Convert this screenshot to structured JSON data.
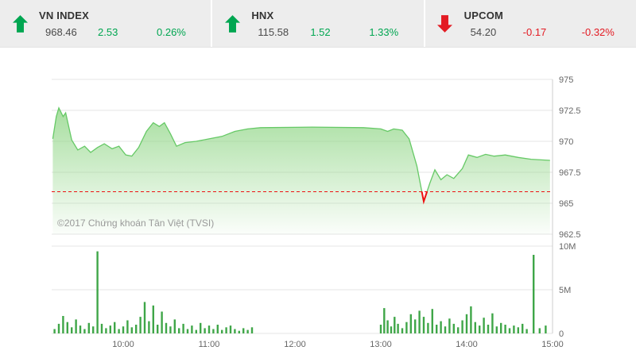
{
  "tickers": [
    {
      "name": "VN INDEX",
      "value": "968.46",
      "change": "2.53",
      "percent": "0.26%",
      "direction": "up"
    },
    {
      "name": "HNX",
      "value": "115.58",
      "change": "1.52",
      "percent": "1.33%",
      "direction": "up"
    },
    {
      "name": "UPCOM",
      "value": "54.20",
      "change": "-0.17",
      "percent": "-0.32%",
      "direction": "down"
    }
  ],
  "chart": {
    "copyright": "©2017 Chứng khoán Tân Việt (TVSI)"
  },
  "colors": {
    "up": "#00a651",
    "down": "#e31b23",
    "line": "#66c966",
    "area_fill": "#8ed584",
    "volume": "#3fa648",
    "ref_line": "#ee1111",
    "grid": "#e6e6e6",
    "border": "#cccccc"
  },
  "chart_data": {
    "type": "area",
    "title": "VN INDEX intraday price and volume",
    "x_axis": {
      "min": 9.1667,
      "max": 15,
      "ticks": [
        10,
        11,
        12,
        13,
        14,
        15
      ],
      "tick_labels": [
        "10:00",
        "11:00",
        "12:00",
        "13:00",
        "14:00",
        "15:00"
      ]
    },
    "price_axis": {
      "min": 962.5,
      "max": 975,
      "ticks": [
        975,
        972.5,
        970,
        967.5,
        965,
        962.5
      ],
      "tick_labels": [
        "975",
        "972.5",
        "970",
        "967.5",
        "965",
        "962.5"
      ]
    },
    "volume_axis": {
      "min": 0,
      "max": 10,
      "ticks": [
        10,
        5,
        0
      ],
      "tick_labels": [
        "10M",
        "5M",
        "0"
      ]
    },
    "reference_line": 965.93,
    "price_series": [
      [
        9.18,
        970.2
      ],
      [
        9.22,
        972.0
      ],
      [
        9.25,
        972.7
      ],
      [
        9.3,
        972.0
      ],
      [
        9.33,
        972.3
      ],
      [
        9.4,
        970.1
      ],
      [
        9.47,
        969.3
      ],
      [
        9.55,
        969.6
      ],
      [
        9.62,
        969.1
      ],
      [
        9.7,
        969.5
      ],
      [
        9.78,
        969.8
      ],
      [
        9.87,
        969.4
      ],
      [
        9.95,
        969.6
      ],
      [
        10.03,
        968.9
      ],
      [
        10.1,
        968.8
      ],
      [
        10.18,
        969.5
      ],
      [
        10.27,
        970.8
      ],
      [
        10.35,
        971.5
      ],
      [
        10.42,
        971.2
      ],
      [
        10.48,
        971.5
      ],
      [
        10.55,
        970.6
      ],
      [
        10.62,
        969.6
      ],
      [
        10.72,
        969.9
      ],
      [
        10.85,
        970.0
      ],
      [
        11.0,
        970.2
      ],
      [
        11.15,
        970.4
      ],
      [
        11.3,
        970.8
      ],
      [
        11.45,
        971.0
      ],
      [
        11.6,
        971.1
      ],
      [
        12.2,
        971.15
      ],
      [
        12.8,
        971.1
      ],
      [
        13.0,
        971.0
      ],
      [
        13.08,
        970.8
      ],
      [
        13.15,
        971.0
      ],
      [
        13.25,
        970.9
      ],
      [
        13.33,
        970.2
      ],
      [
        13.42,
        968.0
      ],
      [
        13.5,
        965.15
      ],
      [
        13.57,
        966.6
      ],
      [
        13.63,
        967.7
      ],
      [
        13.7,
        966.9
      ],
      [
        13.77,
        967.3
      ],
      [
        13.85,
        967.0
      ],
      [
        13.95,
        967.8
      ],
      [
        14.02,
        968.9
      ],
      [
        14.12,
        968.7
      ],
      [
        14.22,
        968.95
      ],
      [
        14.32,
        968.8
      ],
      [
        14.45,
        968.9
      ],
      [
        14.6,
        968.7
      ],
      [
        14.75,
        968.55
      ],
      [
        14.97,
        968.46
      ]
    ],
    "volume_series": [
      [
        9.2,
        0.5
      ],
      [
        9.25,
        1.1
      ],
      [
        9.3,
        2.0
      ],
      [
        9.35,
        1.3
      ],
      [
        9.4,
        0.7
      ],
      [
        9.45,
        1.6
      ],
      [
        9.5,
        0.9
      ],
      [
        9.55,
        0.5
      ],
      [
        9.6,
        1.2
      ],
      [
        9.65,
        0.8
      ],
      [
        9.7,
        9.4
      ],
      [
        9.75,
        1.1
      ],
      [
        9.8,
        0.6
      ],
      [
        9.85,
        0.9
      ],
      [
        9.9,
        1.3
      ],
      [
        9.95,
        0.5
      ],
      [
        10.0,
        0.8
      ],
      [
        10.05,
        1.5
      ],
      [
        10.1,
        0.7
      ],
      [
        10.15,
        1.0
      ],
      [
        10.2,
        1.9
      ],
      [
        10.25,
        3.6
      ],
      [
        10.3,
        1.4
      ],
      [
        10.35,
        3.2
      ],
      [
        10.4,
        1.0
      ],
      [
        10.45,
        2.5
      ],
      [
        10.5,
        1.2
      ],
      [
        10.55,
        0.8
      ],
      [
        10.6,
        1.6
      ],
      [
        10.65,
        0.6
      ],
      [
        10.7,
        1.1
      ],
      [
        10.75,
        0.5
      ],
      [
        10.8,
        0.9
      ],
      [
        10.85,
        0.4
      ],
      [
        10.9,
        1.2
      ],
      [
        10.95,
        0.6
      ],
      [
        11.0,
        0.9
      ],
      [
        11.05,
        0.5
      ],
      [
        11.1,
        1.0
      ],
      [
        11.15,
        0.4
      ],
      [
        11.2,
        0.7
      ],
      [
        11.25,
        0.9
      ],
      [
        11.3,
        0.5
      ],
      [
        11.35,
        0.3
      ],
      [
        11.4,
        0.6
      ],
      [
        11.45,
        0.4
      ],
      [
        11.5,
        0.7
      ],
      [
        13.0,
        1.0
      ],
      [
        13.04,
        2.9
      ],
      [
        13.08,
        1.5
      ],
      [
        13.12,
        0.8
      ],
      [
        13.16,
        1.9
      ],
      [
        13.2,
        1.1
      ],
      [
        13.25,
        0.6
      ],
      [
        13.3,
        1.3
      ],
      [
        13.35,
        2.2
      ],
      [
        13.4,
        1.6
      ],
      [
        13.45,
        2.6
      ],
      [
        13.5,
        1.9
      ],
      [
        13.55,
        1.2
      ],
      [
        13.6,
        2.8
      ],
      [
        13.65,
        1.0
      ],
      [
        13.7,
        1.4
      ],
      [
        13.75,
        0.8
      ],
      [
        13.8,
        1.7
      ],
      [
        13.85,
        1.1
      ],
      [
        13.9,
        0.7
      ],
      [
        13.95,
        1.5
      ],
      [
        14.0,
        2.2
      ],
      [
        14.05,
        3.1
      ],
      [
        14.1,
        1.3
      ],
      [
        14.15,
        0.9
      ],
      [
        14.2,
        1.8
      ],
      [
        14.25,
        1.0
      ],
      [
        14.3,
        2.3
      ],
      [
        14.35,
        0.8
      ],
      [
        14.4,
        1.2
      ],
      [
        14.45,
        1.0
      ],
      [
        14.5,
        0.6
      ],
      [
        14.55,
        0.9
      ],
      [
        14.6,
        0.7
      ],
      [
        14.65,
        1.1
      ],
      [
        14.7,
        0.5
      ],
      [
        14.78,
        9.0
      ],
      [
        14.85,
        0.6
      ],
      [
        14.92,
        0.9
      ]
    ]
  }
}
